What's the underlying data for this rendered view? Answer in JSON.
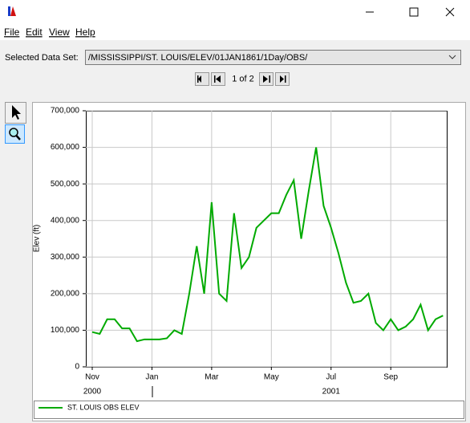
{
  "window": {
    "menu": [
      "File",
      "Edit",
      "View",
      "Help"
    ],
    "dataset_label": "Selected Data Set:",
    "dataset": "/MISSISSIPPI/ST. LOUIS/ELEV/01JAN1861/1Day/OBS/",
    "page": "1 of 2"
  },
  "chart_data": {
    "type": "line",
    "ylabel": "Elev (ft)",
    "categories": [
      "Nov",
      null,
      null,
      null,
      null,
      null,
      null,
      null,
      "Jan",
      null,
      null,
      null,
      null,
      null,
      null,
      null,
      "Mar",
      null,
      null,
      null,
      null,
      null,
      null,
      null,
      "May",
      null,
      null,
      null,
      null,
      null,
      null,
      null,
      "Jul",
      null,
      null,
      null,
      null,
      null,
      null,
      null,
      "Sep",
      null,
      null,
      null,
      null,
      null,
      null,
      null
    ],
    "year_labels": [
      "2000",
      "2001"
    ],
    "series": [
      {
        "name": "ST. LOUIS OBS ELEV",
        "color": "#00aa00",
        "values": [
          95000,
          90000,
          130000,
          130000,
          105000,
          105000,
          70000,
          75000,
          75000,
          75000,
          78000,
          100000,
          90000,
          200000,
          330000,
          200000,
          450000,
          200000,
          180000,
          420000,
          270000,
          300000,
          380000,
          400000,
          420000,
          420000,
          470000,
          510000,
          350000,
          480000,
          600000,
          440000,
          380000,
          310000,
          230000,
          175000,
          180000,
          200000,
          120000,
          100000,
          130000,
          100000,
          110000,
          130000,
          170000,
          100000,
          130000,
          140000
        ]
      }
    ],
    "ylim": [
      0,
      700000
    ],
    "yticks": [
      0,
      {
        "value": 100000,
        "label": "100,000"
      },
      {
        "value": 200000,
        "label": "200,000"
      },
      {
        "value": 300000,
        "label": "300,000"
      },
      {
        "value": 400000,
        "label": "400,000"
      },
      {
        "value": 500000,
        "label": "500,000"
      },
      {
        "value": 600000,
        "label": "600,000"
      },
      {
        "value": 700000,
        "label": "700,000"
      }
    ],
    "grid": true
  }
}
